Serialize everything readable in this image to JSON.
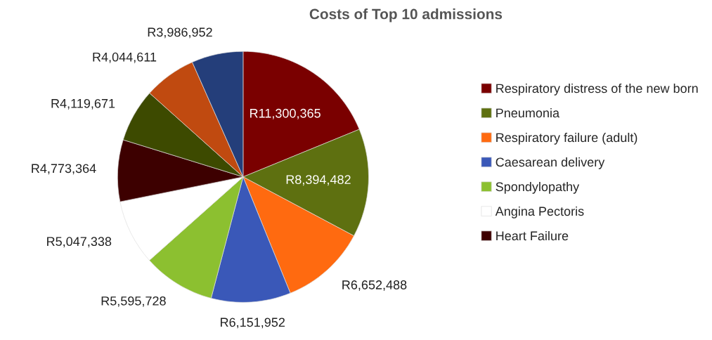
{
  "chart_data": {
    "type": "pie",
    "title": "Costs of Top 10 admissions",
    "categories": [
      "Respiratory distress of the new born",
      "Pneumonia",
      "Respiratory failure (adult)",
      "Caesarean delivery",
      "Spondylopathy",
      "Angina Pectoris",
      "Heart Failure",
      null,
      null,
      null
    ],
    "values": [
      11300365,
      8394482,
      6652488,
      6151952,
      5595728,
      5047338,
      4773364,
      4119671,
      4044611,
      3986952
    ],
    "value_labels": [
      "R11,300,365",
      "R8,394,482",
      "R6,652,488",
      "R6,151,952",
      "R5,595,728",
      "R5,047,338",
      "R4,773,364",
      "R4,119,671",
      "R4,044,611",
      "R3,986,952"
    ],
    "colors": [
      "#7a0000",
      "#5e7010",
      "#ff6a10",
      "#3a58b8",
      "#8cc030",
      "#ffffff",
      "#3d0000",
      "#3d4a00",
      "#c04a10",
      "#243e7a"
    ],
    "legend": "right"
  }
}
